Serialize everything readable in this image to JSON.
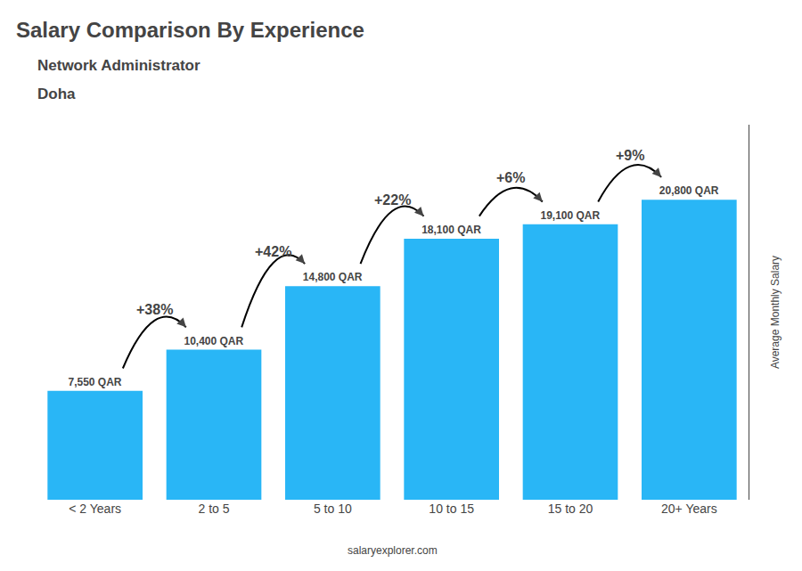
{
  "chart_data": {
    "type": "bar",
    "title": "Salary Comparison By Experience",
    "subtitle": [
      "Network Administrator",
      "Doha"
    ],
    "ylabel": "Average Monthly Salary",
    "categories": [
      "< 2 Years",
      "2 to 5",
      "5 to 10",
      "10 to 15",
      "15 to 20",
      "20+ Years"
    ],
    "values": [
      7550,
      10400,
      14800,
      18100,
      19100,
      20800
    ],
    "value_labels": [
      "7,550 QAR",
      "10,400 QAR",
      "14,800 QAR",
      "18,100 QAR",
      "19,100 QAR",
      "20,800 QAR"
    ],
    "data_labels": true,
    "annotations": [
      "+38%",
      "+42%",
      "+22%",
      "+6%",
      "+9%"
    ],
    "watermark": "salaryexplorer.com",
    "color": "#29B6F6",
    "ylim": [
      0,
      26000
    ],
    "grid": false,
    "tick_labels": "x"
  }
}
